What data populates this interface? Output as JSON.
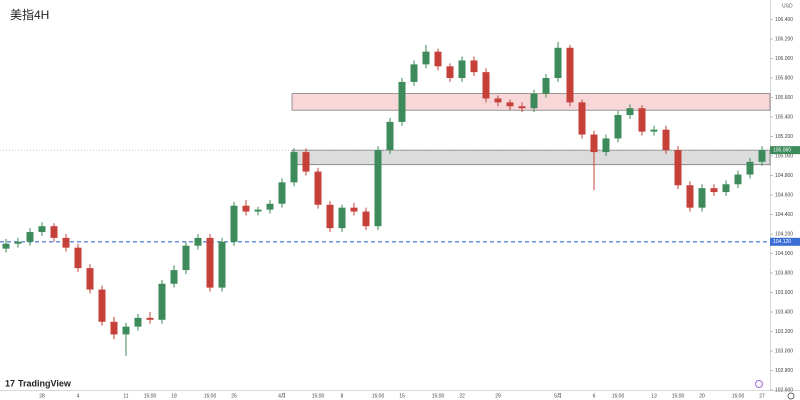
{
  "chart_data": {
    "type": "candlestick",
    "title": "美指4H",
    "currency": "USD",
    "watermark": "TradingView",
    "up_color": "#3d8b5a",
    "down_color": "#c6403a",
    "ylim": [
      102.6,
      106.6
    ],
    "yticks": [
      {
        "value": 102.6,
        "label": "102.600"
      },
      {
        "value": 102.8,
        "label": "102.800"
      },
      {
        "value": 103.0,
        "label": "103.000"
      },
      {
        "value": 103.2,
        "label": "103.200"
      },
      {
        "value": 103.4,
        "label": "103.400"
      },
      {
        "value": 103.6,
        "label": "103.600"
      },
      {
        "value": 103.8,
        "label": "103.800"
      },
      {
        "value": 104.0,
        "label": "104.000"
      },
      {
        "value": 104.2,
        "label": "104.200"
      },
      {
        "value": 104.4,
        "label": "104.400"
      },
      {
        "value": 104.6,
        "label": "104.600"
      },
      {
        "value": 104.8,
        "label": "104.800"
      },
      {
        "value": 105.0,
        "label": "105.000"
      },
      {
        "value": 105.2,
        "label": "105.200"
      },
      {
        "value": 105.4,
        "label": "105.400"
      },
      {
        "value": 105.6,
        "label": "105.600"
      },
      {
        "value": 105.8,
        "label": "105.800"
      },
      {
        "value": 106.0,
        "label": "106.000"
      },
      {
        "value": 106.2,
        "label": "106.200"
      },
      {
        "value": 106.4,
        "label": "106.400"
      }
    ],
    "categories": [
      null,
      null,
      null,
      "28",
      null,
      null,
      "4",
      null,
      null,
      null,
      "11",
      null,
      "15:00",
      null,
      "18",
      null,
      null,
      "15:00",
      null,
      "25",
      null,
      null,
      null,
      "4月",
      null,
      null,
      "15:00",
      null,
      "8",
      null,
      null,
      "15:00",
      null,
      "15",
      null,
      null,
      "15:00",
      null,
      "22",
      null,
      null,
      "29",
      null,
      null,
      null,
      null,
      "5月",
      null,
      null,
      "6",
      null,
      "15:00",
      null,
      null,
      "13",
      null,
      "15:00",
      null,
      "20",
      null,
      null,
      "15:00",
      null,
      "27"
    ],
    "open": [
      104.05,
      104.1,
      104.12,
      104.22,
      104.28,
      104.16,
      104.06,
      103.85,
      103.63,
      103.3,
      103.17,
      103.25,
      103.34,
      103.32,
      103.69,
      103.83,
      104.08,
      104.16,
      103.65,
      104.12,
      104.49,
      104.43,
      104.45,
      104.51,
      104.73,
      105.04,
      104.84,
      104.5,
      104.26,
      104.47,
      104.43,
      104.28,
      105.06,
      105.35,
      105.76,
      105.94,
      106.07,
      105.92,
      105.8,
      105.98,
      105.86,
      105.59,
      105.55,
      105.51,
      105.49,
      105.64,
      105.8,
      106.11,
      105.55,
      105.22,
      105.04,
      105.18,
      105.42,
      105.49,
      105.25,
      105.27,
      105.06,
      104.7,
      104.47,
      104.67,
      104.63,
      104.71,
      104.81,
      104.94
    ],
    "high": [
      104.15,
      104.16,
      104.26,
      104.32,
      104.31,
      104.2,
      104.1,
      103.89,
      103.67,
      103.35,
      103.29,
      103.38,
      103.4,
      103.73,
      103.88,
      104.12,
      104.2,
      104.2,
      104.16,
      104.53,
      104.55,
      104.48,
      104.55,
      104.77,
      105.08,
      105.08,
      104.88,
      104.54,
      104.5,
      104.52,
      104.47,
      105.1,
      105.39,
      105.8,
      105.98,
      106.14,
      106.1,
      105.95,
      106.02,
      106.02,
      105.9,
      105.62,
      105.58,
      105.55,
      105.68,
      105.84,
      106.17,
      106.14,
      105.58,
      105.26,
      105.22,
      105.46,
      105.53,
      105.52,
      105.31,
      105.31,
      105.1,
      104.74,
      104.71,
      104.71,
      104.75,
      104.85,
      104.98,
      105.1
    ],
    "low": [
      104.01,
      104.06,
      104.08,
      104.18,
      104.12,
      104.02,
      103.81,
      103.59,
      103.26,
      103.12,
      102.95,
      103.21,
      103.28,
      103.28,
      103.65,
      103.79,
      104.04,
      103.61,
      103.61,
      104.08,
      104.39,
      104.39,
      104.41,
      104.47,
      104.69,
      104.8,
      104.46,
      104.22,
      104.22,
      104.39,
      104.24,
      104.24,
      105.02,
      105.31,
      105.72,
      105.9,
      105.88,
      105.76,
      105.76,
      105.82,
      105.55,
      105.51,
      105.47,
      105.45,
      105.45,
      105.6,
      105.76,
      105.51,
      105.18,
      104.65,
      105.0,
      105.14,
      105.38,
      105.21,
      105.21,
      105.02,
      104.66,
      104.43,
      104.43,
      104.59,
      104.59,
      104.67,
      104.77,
      104.9
    ],
    "close": [
      104.1,
      104.12,
      104.22,
      104.28,
      104.16,
      104.06,
      103.85,
      103.63,
      103.3,
      103.17,
      103.25,
      103.34,
      103.32,
      103.69,
      103.83,
      104.08,
      104.16,
      103.65,
      104.12,
      104.49,
      104.43,
      104.45,
      104.51,
      104.73,
      105.04,
      104.84,
      104.5,
      104.26,
      104.47,
      104.43,
      104.28,
      105.06,
      105.35,
      105.76,
      105.94,
      106.07,
      105.92,
      105.8,
      105.98,
      105.86,
      105.59,
      105.55,
      105.51,
      105.49,
      105.64,
      105.8,
      106.11,
      105.55,
      105.22,
      105.04,
      105.18,
      105.42,
      105.49,
      105.25,
      105.27,
      105.06,
      104.7,
      104.47,
      104.67,
      104.63,
      104.71,
      104.81,
      104.94,
      105.06
    ],
    "zones": [
      {
        "top": 105.64,
        "bottom": 105.47,
        "color": "#f8d7d9"
      },
      {
        "top": 105.06,
        "bottom": 104.91,
        "color": "#dcdcdc"
      }
    ],
    "last_price": {
      "value": 105.06,
      "label": "105.060",
      "color": "#3d8b5a"
    },
    "level": {
      "value": 104.12,
      "label": "104.120",
      "color": "#3b6fd6"
    }
  }
}
